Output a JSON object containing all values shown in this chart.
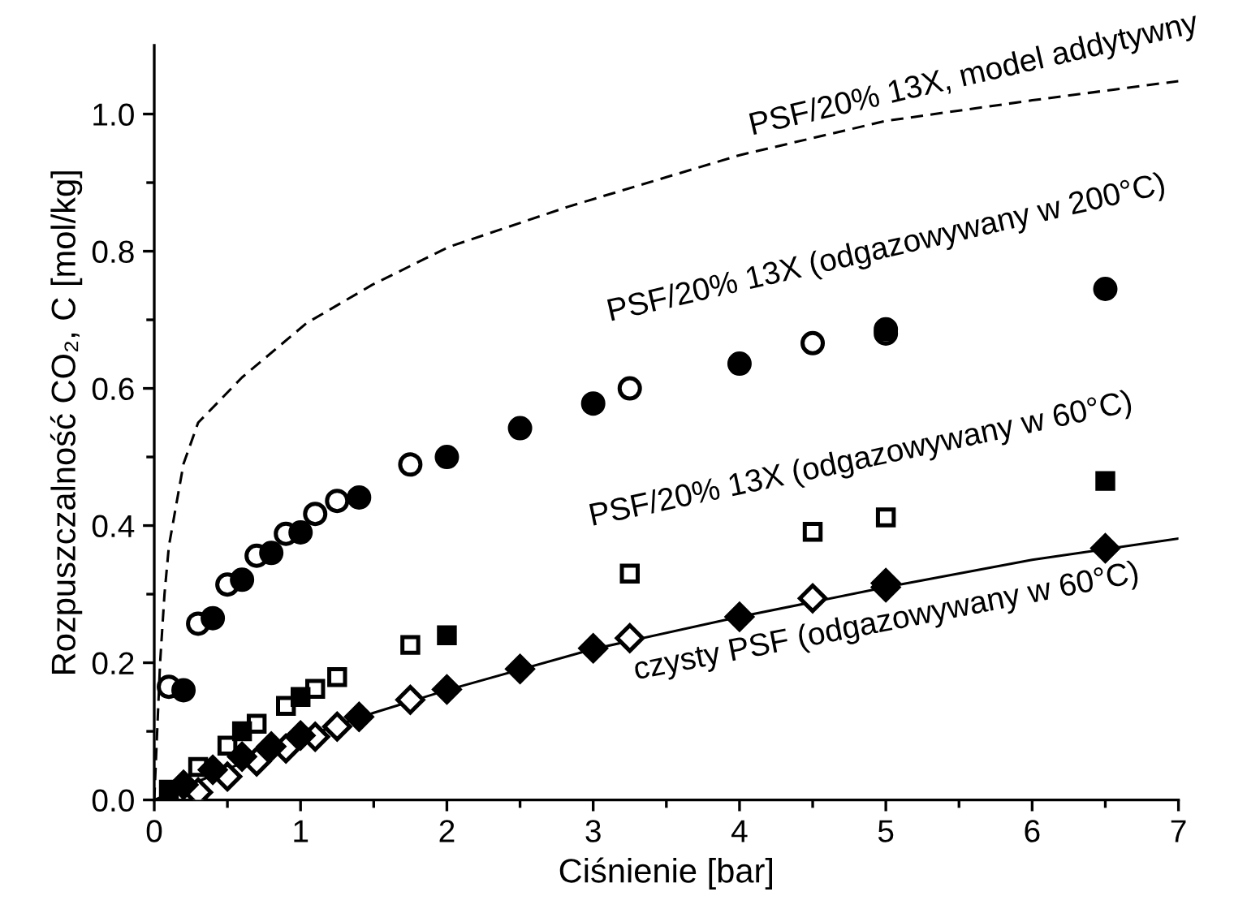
{
  "chart_data": {
    "type": "scatter",
    "xlabel": "Ciśnienie [bar]",
    "ylabel": "Rozpuszczalność CO₂, C [mol/kg]",
    "xlim": [
      0,
      7
    ],
    "ylim": [
      0,
      1.1
    ],
    "xticks": [
      0,
      {
        "value": 0.5,
        "label": null
      },
      1,
      {
        "value": 1.5,
        "label": null
      },
      2,
      {
        "value": 2.5,
        "label": null
      },
      3,
      {
        "value": 3.5,
        "label": null
      },
      4,
      {
        "value": 4.5,
        "label": null
      },
      5,
      {
        "value": 5.5,
        "label": null
      },
      6,
      {
        "value": 6.5,
        "label": null
      },
      7
    ],
    "yticks": [
      "0.0",
      {
        "value": 0.1,
        "label": null
      },
      {
        "value": 0.2,
        "label": "0.2"
      },
      {
        "value": 0.3,
        "label": null
      },
      {
        "value": 0.4,
        "label": "0.4"
      },
      {
        "value": 0.5,
        "label": null
      },
      {
        "value": 0.6,
        "label": "0.6"
      },
      {
        "value": 0.7,
        "label": null
      },
      {
        "value": 0.8,
        "label": "0.8"
      },
      {
        "value": 0.9,
        "label": null
      },
      {
        "value": 1.0,
        "label": "1.0"
      }
    ],
    "grid": false,
    "legend": false,
    "series": [
      {
        "type": "line",
        "line_style": "dashed",
        "marker": "none",
        "color": "#000000",
        "x": [
          0,
          0.02,
          0.04,
          0.07,
          0.1,
          0.2,
          0.3,
          0.6,
          1.04,
          1.49,
          2.01,
          2.83,
          4,
          5,
          6,
          7
        ],
        "values": [
          0,
          0.1,
          0.2,
          0.3,
          0.37,
          0.49,
          0.55,
          0.616,
          0.695,
          0.751,
          0.806,
          0.865,
          0.94,
          0.99,
          1.02,
          1.048
        ]
      },
      {
        "type": "line",
        "line_style": "solid",
        "marker": "none",
        "color": "#000000",
        "x": [
          0,
          0.5,
          1,
          1.5,
          2,
          3,
          4,
          5,
          6,
          7
        ],
        "values": [
          0,
          0.045,
          0.09,
          0.127,
          0.16,
          0.22,
          0.267,
          0.31,
          0.35,
          0.381
        ]
      },
      {
        "marker": "circle",
        "color": "#000000",
        "x": [
          0.1,
          0.3,
          0.5,
          0.7,
          0.9,
          1.1,
          1.25,
          1.75,
          3.25,
          4.5,
          5.0
        ],
        "values": [
          0.165,
          0.257,
          0.314,
          0.356,
          0.388,
          0.417,
          0.436,
          0.489,
          0.6,
          0.666,
          0.68
        ]
      },
      {
        "marker": "circle",
        "color": "#000000",
        "x": [
          0.2,
          0.4,
          0.6,
          0.8,
          1.0,
          1.4,
          2.0,
          2.5,
          3.0,
          4.0,
          5.0,
          6.5
        ],
        "values": [
          0.16,
          0.265,
          0.321,
          0.36,
          0.39,
          0.441,
          0.5,
          0.542,
          0.578,
          0.636,
          0.686,
          0.745
        ]
      },
      {
        "marker": "square",
        "color": "#000000",
        "x": [
          0.3,
          0.5,
          0.7,
          0.9,
          1.1,
          1.25,
          1.75,
          3.25,
          4.5,
          5.0
        ],
        "values": [
          0.048,
          0.079,
          0.111,
          0.137,
          0.162,
          0.179,
          0.226,
          0.33,
          0.391,
          0.412
        ]
      },
      {
        "marker": "square",
        "color": "#000000",
        "x": [
          0.1,
          0.6,
          1.0,
          2.0,
          6.5
        ],
        "values": [
          0.015,
          0.1,
          0.15,
          0.24,
          0.465
        ]
      },
      {
        "marker": "diamond",
        "color": "#000000",
        "x": [
          0.3,
          0.5,
          0.7,
          0.9,
          1.1,
          1.25,
          1.75,
          3.25,
          4.5,
          5.0
        ],
        "values": [
          0.011,
          0.034,
          0.056,
          0.075,
          0.092,
          0.107,
          0.146,
          0.236,
          0.294,
          0.316
        ]
      },
      {
        "marker": "diamond",
        "color": "#000000",
        "x": [
          0.2,
          0.4,
          0.6,
          0.8,
          1.0,
          1.4,
          2.0,
          2.5,
          3.0,
          4.0,
          5.0,
          6.5
        ],
        "values": [
          0.022,
          0.044,
          0.063,
          0.078,
          0.094,
          0.121,
          0.161,
          0.191,
          0.221,
          0.267,
          0.31,
          0.367
        ]
      }
    ],
    "annotations": [
      "PSF/20% 13X, model addytywny",
      "PSF/20% 13X (odgazowywany w 200°C)",
      "PSF/20% 13X (odgazowywany w 60°C)",
      "czysty PSF (odgazowywany w 60°C)"
    ]
  }
}
